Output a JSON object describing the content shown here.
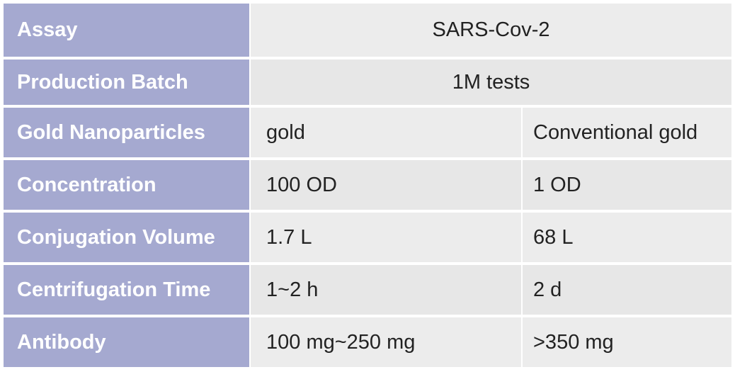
{
  "table": {
    "rows": [
      {
        "header": "Assay",
        "cells": [
          "SARS-Cov-2"
        ]
      },
      {
        "header": "Production Batch",
        "cells": [
          "1M tests"
        ]
      },
      {
        "header": "Gold Nanoparticles",
        "cells": [
          "gold",
          "Conventional gold"
        ]
      },
      {
        "header": "Concentration",
        "cells": [
          "100 OD",
          "1 OD"
        ]
      },
      {
        "header": "Conjugation Volume",
        "cells": [
          "1.7 L",
          "68 L"
        ]
      },
      {
        "header": "Centrifugation Time",
        "cells": [
          "1~2 h",
          "2 d"
        ]
      },
      {
        "header": "Antibody",
        "cells": [
          "100 mg~250 mg",
          ">350 mg"
        ]
      }
    ]
  }
}
